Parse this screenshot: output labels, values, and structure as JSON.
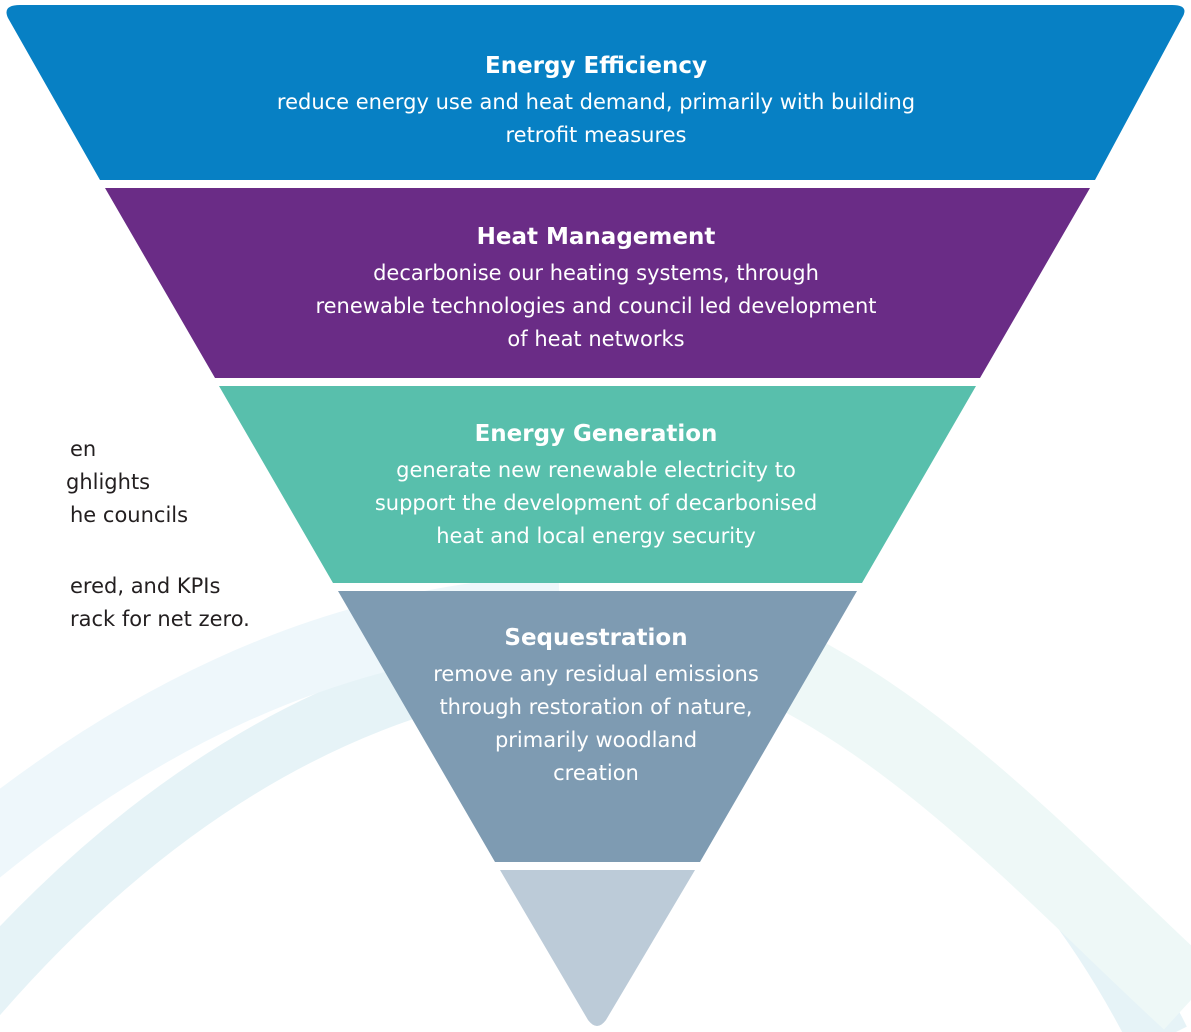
{
  "side_text": [
    "en",
    "ghlights",
    "he councils",
    "ered, and KPIs",
    "rack for net zero."
  ],
  "tiers": [
    {
      "title": "Energy Efficiency",
      "lines": [
        "reduce energy use and heat demand, primarily with building",
        "retrofit measures"
      ]
    },
    {
      "title": "Heat Management",
      "lines": [
        "decarbonise our heating systems, through",
        "renewable technologies and council led development",
        "of heat networks"
      ]
    },
    {
      "title": "Energy Generation",
      "lines": [
        "generate new renewable electricity to",
        "support the development of decarbonised",
        "heat and local energy security"
      ]
    },
    {
      "title": "Sequestration",
      "lines": [
        "remove any residual emissions",
        "through restoration of nature,",
        "primarily woodland",
        "creation"
      ]
    }
  ]
}
